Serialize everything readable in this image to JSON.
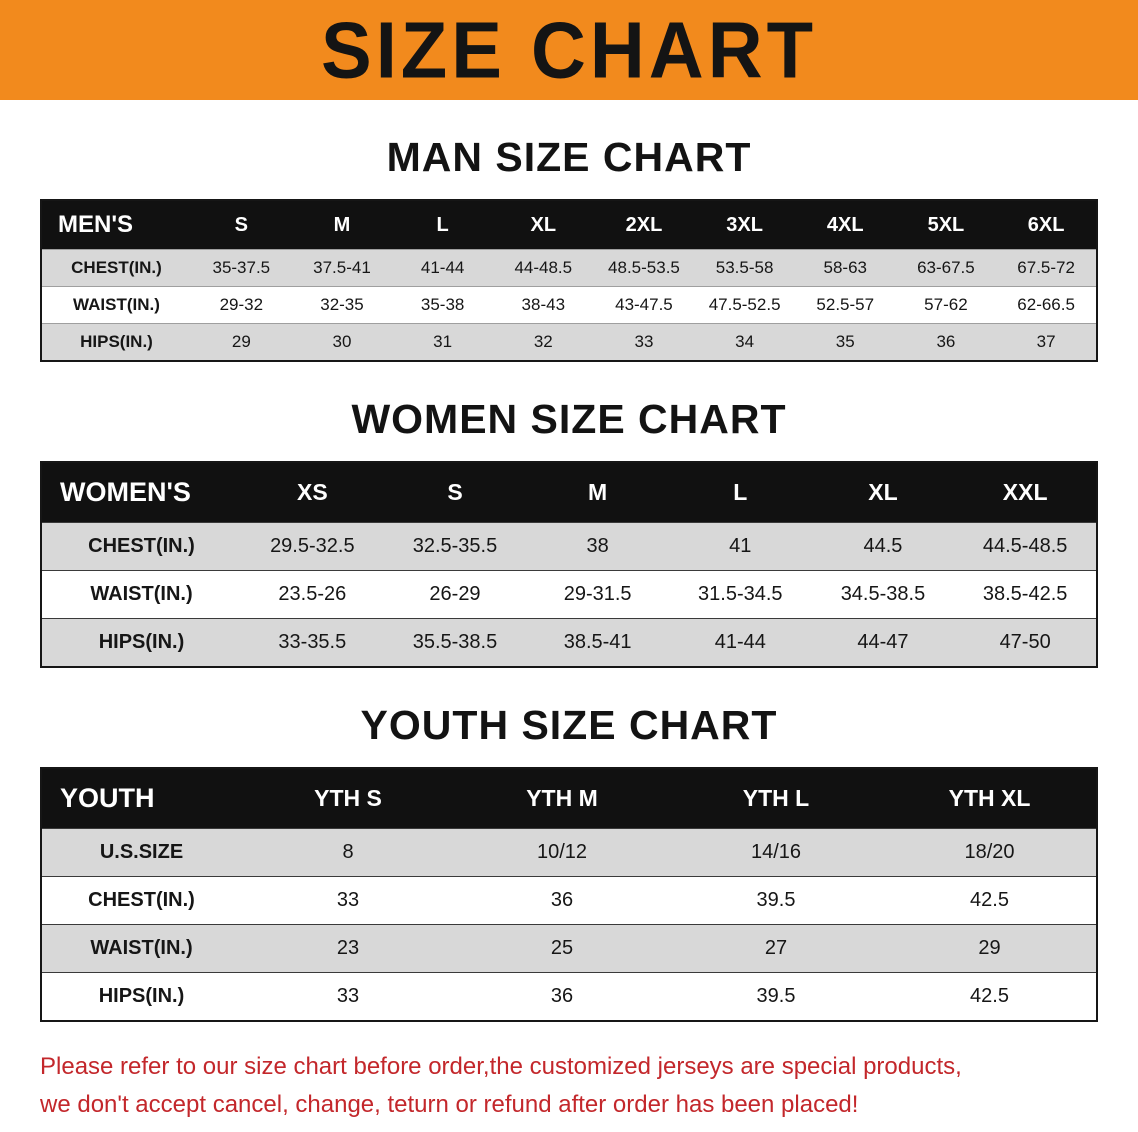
{
  "banner": {
    "title": "SIZE CHART",
    "bg_color": "#f28a1d"
  },
  "chart_data": [
    {
      "type": "table",
      "title": "MAN SIZE CHART",
      "columns": [
        "MEN'S",
        "S",
        "M",
        "L",
        "XL",
        "2XL",
        "3XL",
        "4XL",
        "5XL",
        "6XL"
      ],
      "rows": [
        [
          "CHEST(IN.)",
          "35-37.5",
          "37.5-41",
          "41-44",
          "44-48.5",
          "48.5-53.5",
          "53.5-58",
          "58-63",
          "63-67.5",
          "67.5-72"
        ],
        [
          "WAIST(IN.)",
          "29-32",
          "32-35",
          "35-38",
          "38-43",
          "43-47.5",
          "47.5-52.5",
          "52.5-57",
          "57-62",
          "62-66.5"
        ],
        [
          "HIPS(IN.)",
          "29",
          "30",
          "31",
          "32",
          "33",
          "34",
          "35",
          "36",
          "37"
        ]
      ]
    },
    {
      "type": "table",
      "title": "WOMEN SIZE CHART",
      "columns": [
        "WOMEN'S",
        "XS",
        "S",
        "M",
        "L",
        "XL",
        "XXL"
      ],
      "rows": [
        [
          "CHEST(IN.)",
          "29.5-32.5",
          "32.5-35.5",
          "38",
          "41",
          "44.5",
          "44.5-48.5"
        ],
        [
          "WAIST(IN.)",
          "23.5-26",
          "26-29",
          "29-31.5",
          "31.5-34.5",
          "34.5-38.5",
          "38.5-42.5"
        ],
        [
          "HIPS(IN.)",
          "33-35.5",
          "35.5-38.5",
          "38.5-41",
          "41-44",
          "44-47",
          "47-50"
        ]
      ]
    },
    {
      "type": "table",
      "title": "YOUTH SIZE CHART",
      "columns": [
        "YOUTH",
        "YTH S",
        "YTH M",
        "YTH L",
        "YTH XL"
      ],
      "rows": [
        [
          "U.S.SIZE",
          "8",
          "10/12",
          "14/16",
          "18/20"
        ],
        [
          "CHEST(IN.)",
          "33",
          "36",
          "39.5",
          "42.5"
        ],
        [
          "WAIST(IN.)",
          "23",
          "25",
          "27",
          "29"
        ],
        [
          "HIPS(IN.)",
          "33",
          "36",
          "39.5",
          "42.5"
        ]
      ]
    }
  ],
  "footer": {
    "line1": "Please refer to our size chart before order,the customized jerseys are special products,",
    "line2": "we don't accept cancel, change, teturn or refund after order has been placed!",
    "text_color": "#c3272b"
  }
}
